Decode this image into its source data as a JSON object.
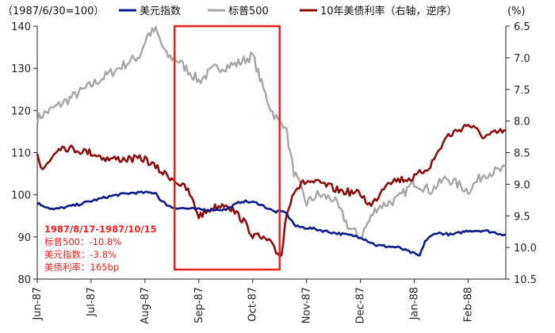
{
  "chart_data": {
    "type": "line",
    "left_axis_unit_label": "（1987/6/30=100）",
    "right_axis_unit_label": "(%)",
    "x_tick_labels": [
      "Jun-87",
      "Jul-87",
      "Aug-87",
      "Sep-87",
      "Oct-87",
      "Nov-87",
      "Dec-87",
      "Jan-88",
      "Feb-88"
    ],
    "left_axis": {
      "min": 80,
      "max": 140,
      "ticks": [
        80,
        90,
        100,
        110,
        120,
        130,
        140
      ]
    },
    "right_axis": {
      "min": 6.5,
      "max": 10.5,
      "inverted": true,
      "ticks": [
        "6.5",
        "7.0",
        "7.5",
        "8.0",
        "8.5",
        "9.0",
        "9.5",
        "10.0",
        "10.5"
      ]
    },
    "legend_position": "top",
    "highlight_range": {
      "from": "1987/8/17",
      "to": "1987/10/15"
    },
    "annotation": {
      "title": "1987/8/17-1987/10/15",
      "lines": [
        "标普500：-10.8%",
        "美元指数：-3.8%",
        "美债利率：165bp"
      ]
    },
    "series": [
      {
        "name": "美元指数",
        "axis": "left",
        "color": "#0d1a8c",
        "month_offset_knots": [
          0,
          0.3,
          0.7,
          1,
          1.3,
          1.5,
          1.8,
          2.2,
          2.3,
          2.5,
          3,
          3.5,
          3.8,
          4.1,
          4.4,
          4.6,
          4.8,
          5.1,
          5.5,
          6,
          6.3,
          6.7,
          7,
          7.1,
          7.2,
          7.4,
          7.7,
          8,
          8.3,
          8.7
        ],
        "values": [
          98,
          96.5,
          97.5,
          98.5,
          99.5,
          100,
          100.5,
          100.5,
          98.5,
          97,
          96.5,
          96.5,
          98.5,
          98,
          96,
          96,
          92.5,
          92,
          91,
          90,
          88,
          87.5,
          86,
          85.5,
          89,
          91,
          90.5,
          91.5,
          91.5,
          90.5
        ]
      },
      {
        "name": "标普500",
        "axis": "left",
        "color": "#a6a6a6",
        "month_offset_knots": [
          0,
          0.1,
          0.5,
          1,
          1.5,
          1.9,
          2.05,
          2.2,
          2.4,
          2.6,
          3,
          3.3,
          3.7,
          4,
          4.2,
          4.35,
          4.5,
          4.6,
          4.75,
          5,
          5.2,
          5.5,
          5.8,
          6,
          6.3,
          6.7,
          7,
          7.3,
          7.6,
          8,
          8.3,
          8.7
        ],
        "values": [
          118,
          119,
          122,
          126,
          130,
          133,
          138,
          139,
          133,
          132,
          127,
          130,
          131,
          133,
          125,
          120,
          117,
          117,
          106,
          98,
          100,
          99,
          92,
          90,
          97,
          99,
          103,
          101,
          104,
          101,
          105,
          106
        ]
      },
      {
        "name": "10年美债利率（右轴，逆序）",
        "axis": "right",
        "color": "#8b0d0d",
        "month_offset_knots": [
          0,
          0.08,
          0.4,
          0.7,
          1,
          1.3,
          1.6,
          2,
          2.3,
          2.5,
          2.8,
          3,
          3.2,
          3.5,
          3.8,
          4,
          4.15,
          4.3,
          4.45,
          4.55,
          4.6,
          4.75,
          5,
          5.3,
          5.6,
          6,
          6.2,
          6.5,
          7,
          7.3,
          7.6,
          8,
          8.3,
          8.7
        ],
        "values": [
          8.5,
          8.8,
          8.4,
          8.45,
          8.5,
          8.6,
          8.6,
          8.6,
          8.8,
          8.9,
          9.1,
          9.5,
          9.4,
          9.3,
          9.55,
          9.8,
          9.85,
          9.9,
          10.1,
          10.1,
          9.6,
          9.1,
          8.95,
          9.0,
          9.1,
          9.15,
          9.35,
          8.95,
          8.9,
          8.7,
          8.25,
          8.05,
          8.25,
          8.15
        ]
      }
    ]
  }
}
